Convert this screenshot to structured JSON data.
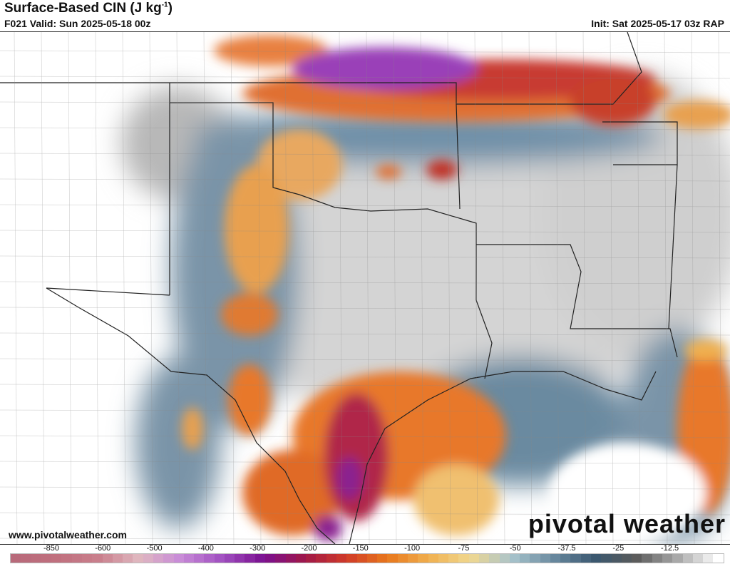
{
  "header": {
    "title": "Surface-Based CIN (J kg",
    "title_sup": "-1",
    "title_end": ")",
    "valid": "F021 Valid: Sun 2025-05-18 00z",
    "init": "Init: Sat 2025-05-17 03z RAP"
  },
  "footer": {
    "website": "www.pivotalweather.com",
    "logo": "pivotal weather"
  },
  "colorbar": {
    "labels": [
      "-850",
      "-600",
      "-500",
      "-400",
      "-300",
      "-200",
      "-150",
      "-100",
      "-75",
      "-50",
      "-37.5",
      "-25",
      "-12.5"
    ],
    "stops": [
      "#b86a7a",
      "#c0707e",
      "#c97f8c",
      "#e0b8c0",
      "#c88ad8",
      "#a050c0",
      "#7a1090",
      "#a01848",
      "#d03a28",
      "#e8781c",
      "#f0b050",
      "#f0d890",
      "#a8c4cc",
      "#6a8aa0",
      "#3a5870",
      "#5a5a5a",
      "#a8a8a8",
      "#ffffff"
    ]
  }
}
